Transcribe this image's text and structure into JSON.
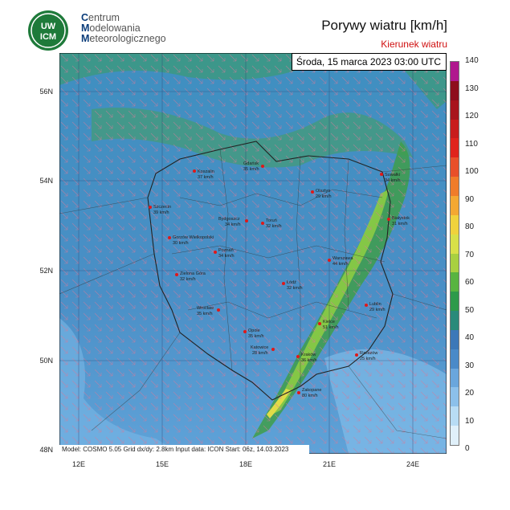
{
  "header": {
    "org_lines": [
      {
        "cap": "C",
        "rest": "entrum"
      },
      {
        "cap": "M",
        "rest": "odelowania"
      },
      {
        "cap": "M",
        "rest": "eteorologicznego"
      }
    ],
    "logo_text_top": "UW",
    "logo_text_bottom": "ICM",
    "title": "Porywy wiatru [km/h]",
    "subtitle": "Kierunek wiatru"
  },
  "map": {
    "datetime": "Środa, 15 marca 2023 03:00 UTC",
    "info": "Model: COSMO 5.05  Grid dx/dy: 2.8km  Input data: ICON  Start: 06z, 14.03.2023",
    "lat_labels": [
      "56N",
      "54N",
      "52N",
      "50N",
      "48N"
    ],
    "lon_labels": [
      "12E",
      "15E",
      "18E",
      "21E",
      "24E"
    ],
    "cities": [
      {
        "name": "Koszalin",
        "value": "37 km/h"
      },
      {
        "name": "Gdańsk",
        "value": "35 km/h"
      },
      {
        "name": "Suwałki",
        "value": "34 km/h"
      },
      {
        "name": "Olsztyn",
        "value": "29 km/h"
      },
      {
        "name": "Szczecin",
        "value": "39 km/h"
      },
      {
        "name": "Bydgoszcz",
        "value": "34 km/h"
      },
      {
        "name": "Toruń",
        "value": "32 km/h"
      },
      {
        "name": "Białystok",
        "value": "31 km/h"
      },
      {
        "name": "Gorzów Wielkopolski",
        "value": "30 km/h"
      },
      {
        "name": "Poznań",
        "value": "34 km/h"
      },
      {
        "name": "Warszawa",
        "value": "44 km/h"
      },
      {
        "name": "Zielona Góra",
        "value": "32 km/h"
      },
      {
        "name": "Łódź",
        "value": "32 km/h"
      },
      {
        "name": "Lublin",
        "value": "29 km/h"
      },
      {
        "name": "Wrocław",
        "value": "35 km/h"
      },
      {
        "name": "Kielce",
        "value": "51 km/h"
      },
      {
        "name": "Opole",
        "value": "35 km/h"
      },
      {
        "name": "Katowice",
        "value": "28 km/h"
      },
      {
        "name": "Kraków",
        "value": "36 km/h"
      },
      {
        "name": "Rzeszów",
        "value": "25 km/h"
      },
      {
        "name": "Zakopane",
        "value": "80 km/h"
      }
    ]
  },
  "colorbar": {
    "labels": [
      "140",
      "130",
      "120",
      "110",
      "100",
      "90",
      "80",
      "70",
      "60",
      "50",
      "40",
      "30",
      "20",
      "10",
      "0"
    ],
    "colors": [
      "#b0188e",
      "#8e0e1c",
      "#a8141c",
      "#c81c1c",
      "#e0231c",
      "#e8502a",
      "#f07c2a",
      "#f4a832",
      "#f0d23c",
      "#d8e048",
      "#a8d040",
      "#58b440",
      "#2e9a4a",
      "#2a8a7a",
      "#3c78b8",
      "#4a8ac8",
      "#6aa6dc",
      "#8cc0ea",
      "#b8dcf4",
      "#e0f0fa"
    ]
  }
}
